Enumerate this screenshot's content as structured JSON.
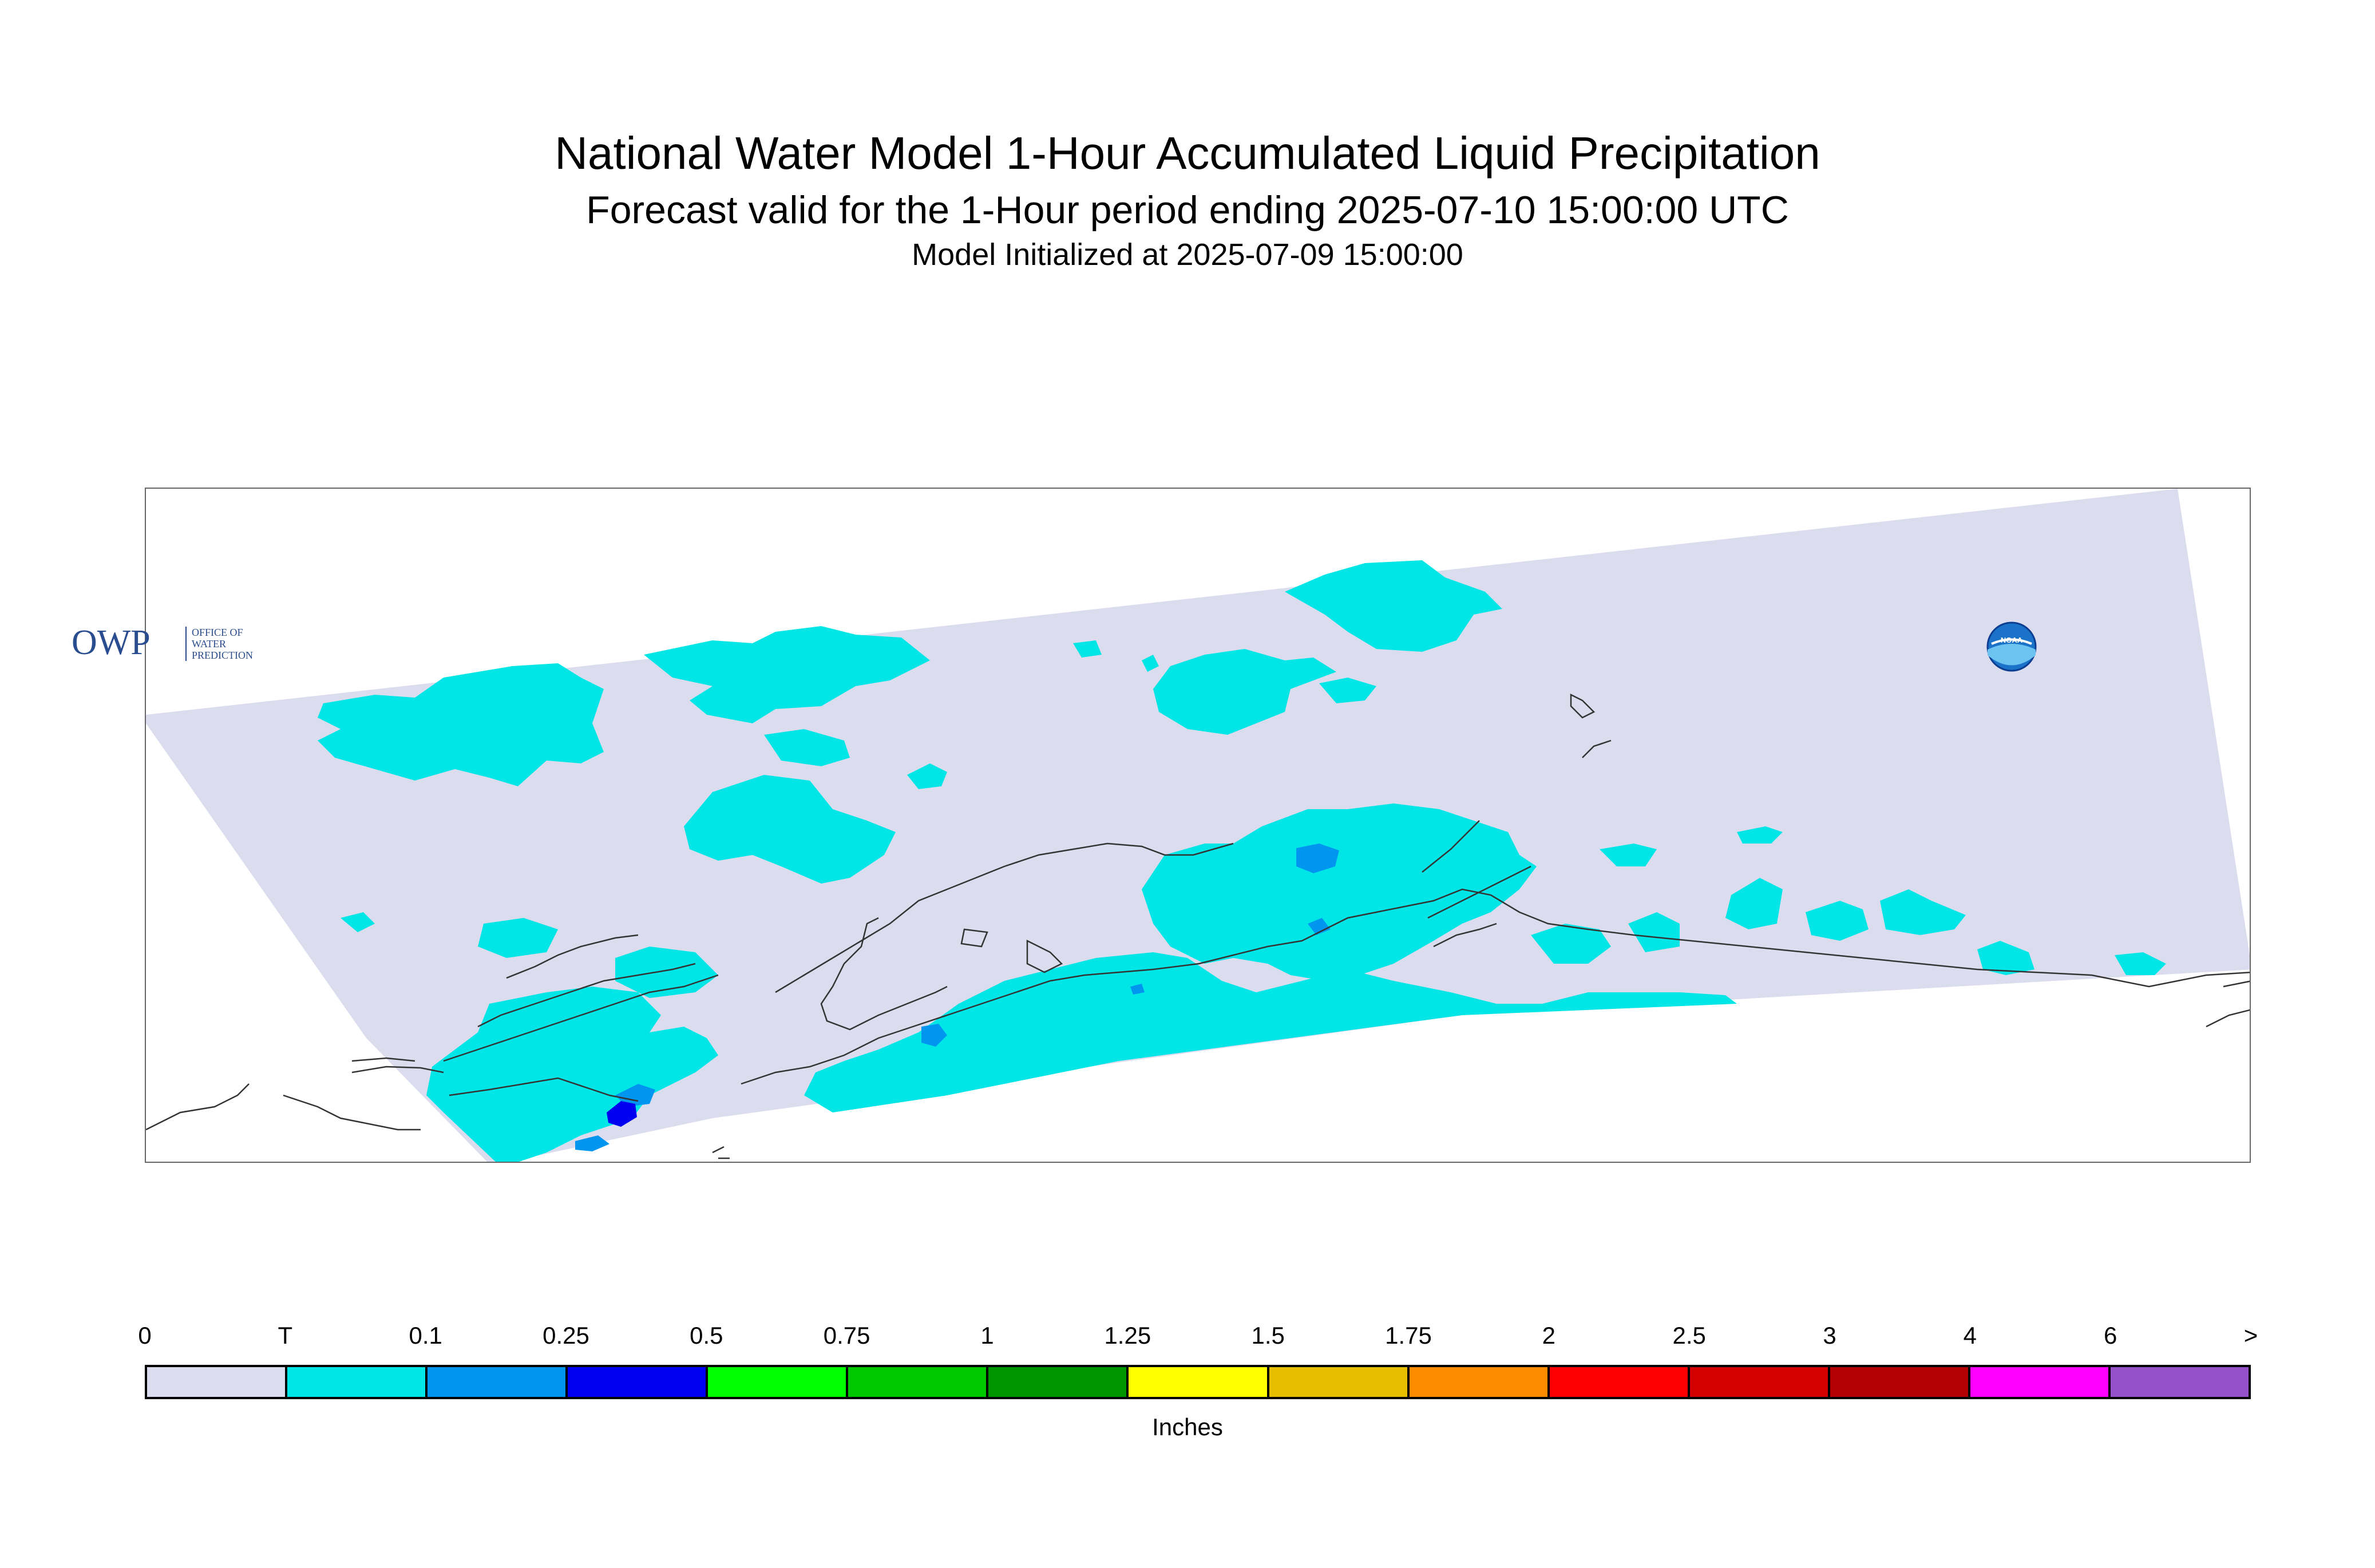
{
  "title": "National Water Model 1-Hour Accumulated Liquid Precipitation",
  "subtitle": "Forecast valid for the 1-Hour period ending 2025-07-10 15:00:00 UTC",
  "init_line": "Model Initialized at 2025-07-09 15:00:00",
  "map": {
    "domain_fill": "#dcdcef",
    "coastline_color": "#333333",
    "features": [
      {
        "name": "trace-precip-area",
        "class": "T",
        "color": "#00e6e6"
      },
      {
        "name": "light-precip-area",
        "class": "0.1",
        "color": "#0096f0"
      },
      {
        "name": "moderate-precip-area",
        "class": "0.25",
        "color": "#0000f0"
      }
    ]
  },
  "logos": {
    "owp": {
      "letters": "OWP",
      "line1": "OFFICE OF",
      "line2": "WATER",
      "line3": "PREDICTION",
      "color": "#2a4d8f"
    },
    "noaa": {
      "text": "NOAA"
    }
  },
  "legend": {
    "ticks": [
      "0",
      "T",
      "0.1",
      "0.25",
      "0.5",
      "0.75",
      "1",
      "1.25",
      "1.5",
      "1.75",
      "2",
      "2.5",
      "3",
      "4",
      "6",
      ">"
    ],
    "colors": [
      "#dcdcef",
      "#00e6e6",
      "#0096f0",
      "#0000f0",
      "#00ff00",
      "#00c800",
      "#009600",
      "#ffff00",
      "#e6be00",
      "#ff8c00",
      "#ff0000",
      "#d20000",
      "#b40000",
      "#ff00ff",
      "#9650c8"
    ],
    "units": "Inches"
  }
}
